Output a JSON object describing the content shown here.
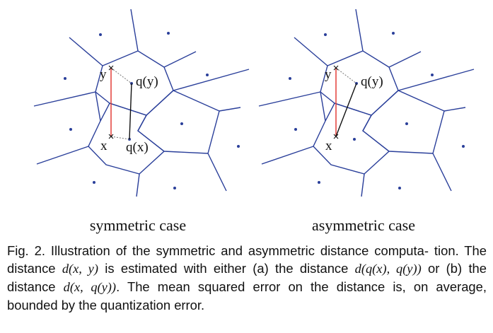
{
  "panels": [
    {
      "title": "symmetric case",
      "labels": {
        "y": "y",
        "x": "x",
        "qy": "q(y)",
        "qx": "q(x)"
      }
    },
    {
      "title": "asymmetric case",
      "labels": {
        "y": "y",
        "x": "x",
        "qy": "q(y)"
      }
    }
  ],
  "caption": {
    "prefix": "Fig. 2. Illustration of the symmetric and asymmetric distance computa- tion. The distance ",
    "m1": "d(x, y)",
    "t2": " is estimated with either (a) the distance ",
    "m2": "d(q(x), q(y))",
    "t3": " or (b) the distance ",
    "m3": "d(x, q(y))",
    "t4": ". The mean squared error on the distance is, on average, bounded by the quantization error."
  },
  "colors": {
    "edges": "#2a3f9a",
    "sites": "#2a3f9a",
    "distance_true": "#e0302a",
    "distance_est": "#111111"
  }
}
